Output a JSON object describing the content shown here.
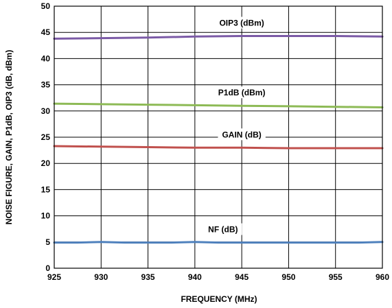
{
  "chart_data": {
    "type": "line",
    "xlabel": "FREQUENCY (MHz)",
    "ylabel": "NOISE FIGURE, GAIN, P1dB, OIP3 (dB, dBm)",
    "xlim": [
      925,
      960
    ],
    "ylim": [
      0,
      50
    ],
    "xticks": [
      925,
      930,
      935,
      940,
      945,
      950,
      955,
      960
    ],
    "yticks": [
      0,
      5,
      10,
      15,
      20,
      25,
      30,
      35,
      40,
      45,
      50
    ],
    "grid": true,
    "series": [
      {
        "name": "OIP3 (dBm)",
        "color": "#7b5aa6",
        "label_at": 945,
        "x": [
          925,
          930,
          935,
          940,
          945,
          950,
          955,
          960
        ],
        "y": [
          43.8,
          43.9,
          44.0,
          44.2,
          44.3,
          44.3,
          44.3,
          44.2
        ]
      },
      {
        "name": "P1dB (dBm)",
        "color": "#8dba55",
        "label_at": 945,
        "x": [
          925,
          930,
          935,
          940,
          945,
          950,
          955,
          960
        ],
        "y": [
          31.4,
          31.3,
          31.2,
          31.1,
          31.0,
          30.9,
          30.8,
          30.7
        ]
      },
      {
        "name": "GAIN (dB)",
        "color": "#c0504d",
        "label_at": 945,
        "x": [
          925,
          930,
          935,
          940,
          945,
          950,
          955,
          960
        ],
        "y": [
          23.3,
          23.2,
          23.1,
          23.0,
          23.0,
          22.9,
          22.9,
          22.9
        ]
      },
      {
        "name": "NF (dB)",
        "color": "#4f81bd",
        "label_at": 943,
        "x": [
          925,
          927.5,
          930,
          932.5,
          935,
          937.5,
          940,
          942.5,
          945,
          947.5,
          950,
          952.5,
          955,
          957.5,
          960
        ],
        "y": [
          4.9,
          4.9,
          5.0,
          4.9,
          4.9,
          4.9,
          5.0,
          4.9,
          4.9,
          4.9,
          4.9,
          4.9,
          4.9,
          4.9,
          5.0
        ]
      }
    ]
  }
}
